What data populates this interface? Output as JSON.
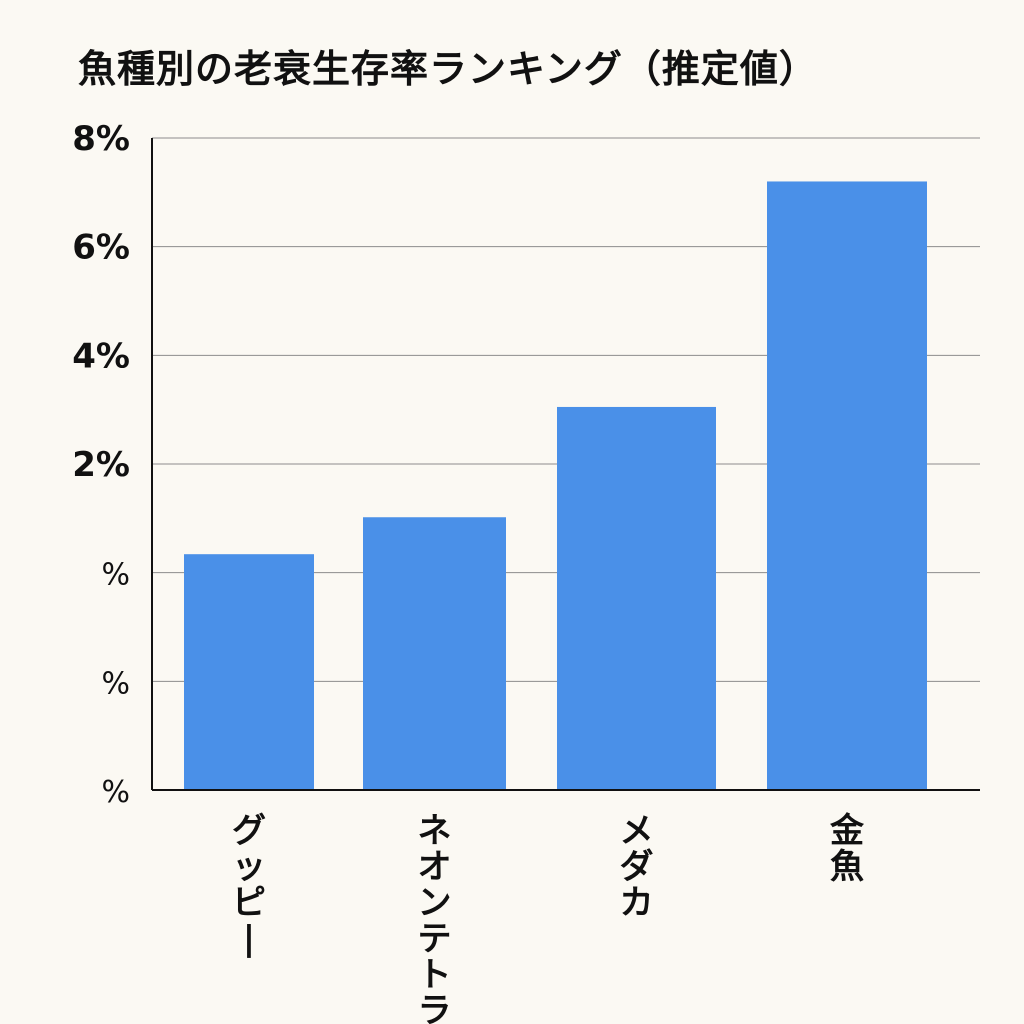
{
  "chart_data": {
    "type": "bar",
    "title": "魚種別の老衰生存率ランキング（推定値）",
    "xlabel": "",
    "ylabel": "",
    "categories": [
      "グッピー",
      "ネオンテトラ",
      "メダカ",
      "金魚"
    ],
    "values": [
      0.34,
      1.02,
      3.05,
      7.2
    ],
    "ylim": [
      -4,
      8
    ],
    "yticks": [
      {
        "value": 8,
        "label": "8%"
      },
      {
        "value": 6,
        "label": "6%"
      },
      {
        "value": 4,
        "label": "4%"
      },
      {
        "value": 2,
        "label": "2%"
      },
      {
        "value": 0,
        "label": "%"
      },
      {
        "value": -2,
        "label": "%"
      },
      {
        "value": -4,
        "label": "%"
      }
    ],
    "grid": true,
    "bar_color": "#4a90e8"
  }
}
